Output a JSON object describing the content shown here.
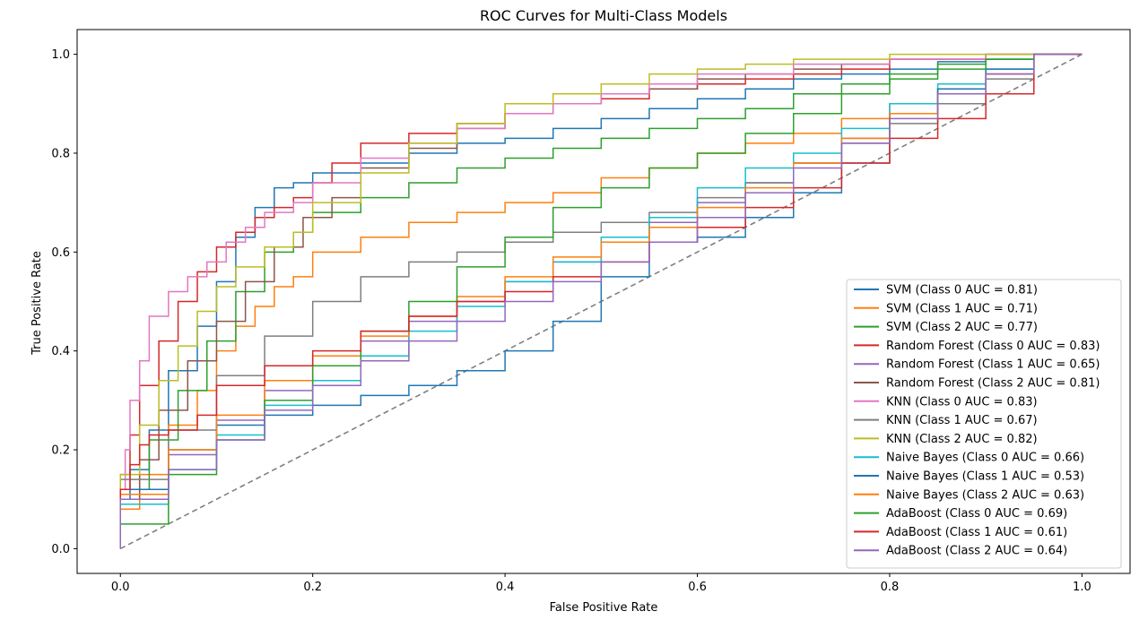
{
  "chart_data": {
    "type": "line",
    "title": "ROC Curves for Multi-Class Models",
    "xlabel": "False Positive Rate",
    "ylabel": "True Positive Rate",
    "xlim": [
      -0.045,
      1.05
    ],
    "ylim": [
      -0.05,
      1.05
    ],
    "xticks": [
      "0.0",
      "0.2",
      "0.4",
      "0.6",
      "0.8",
      "1.0"
    ],
    "yticks": [
      "0.0",
      "0.2",
      "0.4",
      "0.6",
      "0.8",
      "1.0"
    ],
    "grid": false,
    "legend_position": "lower-right",
    "diagonal": {
      "x": [
        0,
        1
      ],
      "y": [
        0,
        1
      ],
      "color": "#7f7f7f",
      "style": "dashed"
    },
    "series": [
      {
        "name": "SVM (Class 0 AUC = 0.81)",
        "color": "#1f77b4",
        "x": [
          0,
          0.01,
          0.03,
          0.05,
          0.08,
          0.1,
          0.12,
          0.14,
          0.16,
          0.18,
          0.2,
          0.25,
          0.3,
          0.35,
          0.4,
          0.45,
          0.5,
          0.55,
          0.6,
          0.65,
          0.7,
          0.75,
          0.8,
          0.85,
          0.9,
          0.95,
          1.0
        ],
        "y": [
          0,
          0.1,
          0.16,
          0.24,
          0.36,
          0.45,
          0.54,
          0.63,
          0.69,
          0.73,
          0.74,
          0.76,
          0.78,
          0.8,
          0.82,
          0.83,
          0.85,
          0.87,
          0.89,
          0.91,
          0.93,
          0.95,
          0.96,
          0.97,
          0.985,
          0.99,
          1.0
        ]
      },
      {
        "name": "SVM (Class 1 AUC = 0.71)",
        "color": "#ff7f0e",
        "x": [
          0,
          0.02,
          0.05,
          0.08,
          0.1,
          0.12,
          0.14,
          0.16,
          0.18,
          0.2,
          0.25,
          0.3,
          0.35,
          0.4,
          0.45,
          0.5,
          0.55,
          0.6,
          0.65,
          0.7,
          0.75,
          0.8,
          0.85,
          0.9,
          0.95,
          1.0
        ],
        "y": [
          0,
          0.08,
          0.15,
          0.25,
          0.32,
          0.4,
          0.45,
          0.49,
          0.53,
          0.55,
          0.6,
          0.63,
          0.66,
          0.68,
          0.7,
          0.72,
          0.75,
          0.77,
          0.8,
          0.82,
          0.84,
          0.87,
          0.9,
          0.93,
          0.96,
          1.0
        ]
      },
      {
        "name": "SVM (Class 2 AUC = 0.77)",
        "color": "#2ca02c",
        "x": [
          0,
          0.03,
          0.06,
          0.09,
          0.12,
          0.15,
          0.18,
          0.2,
          0.25,
          0.3,
          0.35,
          0.4,
          0.45,
          0.5,
          0.55,
          0.6,
          0.65,
          0.7,
          0.75,
          0.8,
          0.85,
          0.9,
          0.95,
          1.0
        ],
        "y": [
          0,
          0.12,
          0.22,
          0.32,
          0.42,
          0.52,
          0.6,
          0.64,
          0.68,
          0.71,
          0.74,
          0.77,
          0.79,
          0.81,
          0.83,
          0.85,
          0.87,
          0.89,
          0.92,
          0.94,
          0.96,
          0.98,
          0.99,
          1.0
        ]
      },
      {
        "name": "Random Forest (Class 0 AUC = 0.83)",
        "color": "#d62728",
        "x": [
          0,
          0.01,
          0.02,
          0.04,
          0.06,
          0.08,
          0.1,
          0.12,
          0.14,
          0.16,
          0.18,
          0.2,
          0.22,
          0.25,
          0.3,
          0.35,
          0.4,
          0.45,
          0.5,
          0.55,
          0.6,
          0.65,
          0.7,
          0.75,
          0.8,
          0.9,
          1.0
        ],
        "y": [
          0,
          0.15,
          0.23,
          0.33,
          0.42,
          0.5,
          0.56,
          0.61,
          0.64,
          0.67,
          0.69,
          0.71,
          0.74,
          0.78,
          0.82,
          0.84,
          0.86,
          0.88,
          0.9,
          0.91,
          0.93,
          0.94,
          0.95,
          0.96,
          0.97,
          0.99,
          1.0
        ]
      },
      {
        "name": "Random Forest (Class 1 AUC = 0.65)",
        "color": "#9467bd",
        "x": [
          0,
          0.05,
          0.1,
          0.15,
          0.2,
          0.25,
          0.3,
          0.35,
          0.4,
          0.45,
          0.5,
          0.55,
          0.6,
          0.65,
          0.7,
          0.75,
          0.8,
          0.85,
          0.9,
          0.95,
          1.0
        ],
        "y": [
          0,
          0.12,
          0.19,
          0.26,
          0.32,
          0.37,
          0.42,
          0.46,
          0.5,
          0.54,
          0.58,
          0.62,
          0.66,
          0.7,
          0.74,
          0.78,
          0.83,
          0.88,
          0.92,
          0.96,
          1.0
        ]
      },
      {
        "name": "Random Forest (Class 2 AUC = 0.81)",
        "color": "#8c564b",
        "x": [
          0,
          0.02,
          0.04,
          0.07,
          0.1,
          0.13,
          0.16,
          0.19,
          0.22,
          0.25,
          0.3,
          0.35,
          0.4,
          0.45,
          0.5,
          0.55,
          0.6,
          0.65,
          0.7,
          0.75,
          0.8,
          0.9,
          1.0
        ],
        "y": [
          0,
          0.1,
          0.18,
          0.28,
          0.38,
          0.46,
          0.54,
          0.61,
          0.67,
          0.71,
          0.77,
          0.81,
          0.85,
          0.88,
          0.9,
          0.92,
          0.93,
          0.95,
          0.96,
          0.97,
          0.98,
          0.99,
          1.0
        ]
      },
      {
        "name": "KNN (Class 0 AUC = 0.83)",
        "color": "#e377c2",
        "x": [
          0,
          0.005,
          0.01,
          0.02,
          0.03,
          0.05,
          0.07,
          0.09,
          0.11,
          0.13,
          0.15,
          0.18,
          0.2,
          0.25,
          0.3,
          0.35,
          0.4,
          0.45,
          0.5,
          0.55,
          0.6,
          0.7,
          0.8,
          0.9,
          1.0
        ],
        "y": [
          0,
          0.12,
          0.2,
          0.3,
          0.38,
          0.47,
          0.52,
          0.55,
          0.58,
          0.62,
          0.65,
          0.68,
          0.7,
          0.74,
          0.79,
          0.82,
          0.85,
          0.88,
          0.9,
          0.92,
          0.94,
          0.96,
          0.98,
          0.99,
          1.0
        ]
      },
      {
        "name": "KNN (Class 1 AUC = 0.67)",
        "color": "#7f7f7f",
        "x": [
          0,
          0.05,
          0.1,
          0.15,
          0.2,
          0.25,
          0.3,
          0.35,
          0.4,
          0.45,
          0.5,
          0.55,
          0.6,
          0.65,
          0.7,
          0.75,
          0.8,
          0.85,
          0.9,
          0.95,
          1.0
        ],
        "y": [
          0,
          0.14,
          0.24,
          0.35,
          0.43,
          0.5,
          0.55,
          0.58,
          0.6,
          0.62,
          0.64,
          0.66,
          0.68,
          0.71,
          0.74,
          0.78,
          0.82,
          0.86,
          0.9,
          0.95,
          1.0
        ]
      },
      {
        "name": "KNN (Class 2 AUC = 0.82)",
        "color": "#bcbd22",
        "x": [
          0,
          0.02,
          0.04,
          0.06,
          0.08,
          0.1,
          0.12,
          0.15,
          0.18,
          0.2,
          0.25,
          0.3,
          0.35,
          0.4,
          0.45,
          0.5,
          0.55,
          0.6,
          0.65,
          0.7,
          0.8,
          0.9,
          1.0
        ],
        "y": [
          0,
          0.15,
          0.25,
          0.34,
          0.41,
          0.48,
          0.53,
          0.57,
          0.61,
          0.64,
          0.7,
          0.76,
          0.82,
          0.86,
          0.9,
          0.92,
          0.94,
          0.96,
          0.97,
          0.98,
          0.99,
          1.0,
          1.0
        ]
      },
      {
        "name": "Naive Bayes (Class 0 AUC = 0.66)",
        "color": "#17becf",
        "x": [
          0,
          0.05,
          0.1,
          0.15,
          0.2,
          0.25,
          0.3,
          0.35,
          0.4,
          0.45,
          0.5,
          0.55,
          0.6,
          0.65,
          0.7,
          0.75,
          0.8,
          0.85,
          0.9,
          0.95,
          1.0
        ],
        "y": [
          0,
          0.09,
          0.16,
          0.23,
          0.29,
          0.34,
          0.39,
          0.44,
          0.49,
          0.54,
          0.58,
          0.63,
          0.67,
          0.73,
          0.77,
          0.8,
          0.85,
          0.9,
          0.94,
          0.97,
          1.0
        ]
      },
      {
        "name": "Naive Bayes (Class 1 AUC = 0.53)",
        "color": "#1f77b4",
        "x": [
          0,
          0.05,
          0.1,
          0.15,
          0.2,
          0.25,
          0.3,
          0.35,
          0.4,
          0.45,
          0.5,
          0.55,
          0.6,
          0.65,
          0.7,
          0.75,
          0.8,
          0.85,
          0.9,
          0.95,
          1.0
        ],
        "y": [
          0,
          0.12,
          0.2,
          0.25,
          0.27,
          0.29,
          0.31,
          0.33,
          0.36,
          0.4,
          0.46,
          0.55,
          0.62,
          0.63,
          0.67,
          0.72,
          0.78,
          0.88,
          0.93,
          0.97,
          1.0
        ]
      },
      {
        "name": "Naive Bayes (Class 2 AUC = 0.63)",
        "color": "#ff7f0e",
        "x": [
          0,
          0.05,
          0.1,
          0.15,
          0.2,
          0.25,
          0.3,
          0.35,
          0.4,
          0.45,
          0.5,
          0.55,
          0.6,
          0.65,
          0.7,
          0.75,
          0.8,
          0.85,
          0.9,
          0.95,
          1.0
        ],
        "y": [
          0,
          0.11,
          0.2,
          0.27,
          0.34,
          0.39,
          0.43,
          0.47,
          0.51,
          0.55,
          0.59,
          0.62,
          0.65,
          0.69,
          0.73,
          0.78,
          0.83,
          0.88,
          0.92,
          0.96,
          1.0
        ]
      },
      {
        "name": "AdaBoost (Class 0 AUC = 0.69)",
        "color": "#2ca02c",
        "x": [
          0,
          0.05,
          0.1,
          0.15,
          0.2,
          0.25,
          0.3,
          0.35,
          0.4,
          0.45,
          0.5,
          0.55,
          0.6,
          0.65,
          0.7,
          0.75,
          0.8,
          0.85,
          0.9,
          0.95,
          1.0
        ],
        "y": [
          0,
          0.05,
          0.15,
          0.22,
          0.3,
          0.37,
          0.44,
          0.5,
          0.57,
          0.63,
          0.69,
          0.73,
          0.77,
          0.8,
          0.84,
          0.88,
          0.92,
          0.95,
          0.97,
          0.99,
          1.0
        ]
      },
      {
        "name": "AdaBoost (Class 1 AUC = 0.61)",
        "color": "#d62728",
        "x": [
          0,
          0.01,
          0.02,
          0.03,
          0.05,
          0.08,
          0.1,
          0.15,
          0.2,
          0.25,
          0.3,
          0.35,
          0.4,
          0.45,
          0.5,
          0.55,
          0.6,
          0.65,
          0.7,
          0.75,
          0.8,
          0.85,
          0.9,
          0.95,
          1.0
        ],
        "y": [
          0,
          0.12,
          0.17,
          0.21,
          0.23,
          0.24,
          0.27,
          0.33,
          0.37,
          0.4,
          0.44,
          0.47,
          0.5,
          0.52,
          0.55,
          0.58,
          0.62,
          0.65,
          0.69,
          0.73,
          0.78,
          0.83,
          0.87,
          0.92,
          1.0
        ]
      },
      {
        "name": "AdaBoost (Class 2 AUC = 0.64)",
        "color": "#9467bd",
        "x": [
          0,
          0.05,
          0.1,
          0.15,
          0.2,
          0.25,
          0.3,
          0.35,
          0.4,
          0.45,
          0.5,
          0.55,
          0.6,
          0.65,
          0.7,
          0.75,
          0.8,
          0.85,
          0.9,
          0.95,
          1.0
        ],
        "y": [
          0,
          0.1,
          0.16,
          0.22,
          0.28,
          0.33,
          0.38,
          0.42,
          0.46,
          0.5,
          0.54,
          0.58,
          0.62,
          0.67,
          0.72,
          0.77,
          0.82,
          0.87,
          0.92,
          0.96,
          1.0
        ]
      }
    ]
  }
}
